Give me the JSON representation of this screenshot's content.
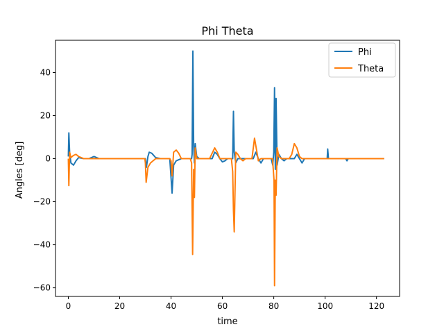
{
  "chart_data": {
    "type": "line",
    "title": "Phi Theta",
    "xlabel": "time",
    "ylabel": "Angles [deg]",
    "xlim": [
      -5,
      129
    ],
    "ylim": [
      -64,
      55
    ],
    "xticks": [
      0,
      20,
      40,
      60,
      80,
      100,
      120
    ],
    "yticks": [
      -60,
      -40,
      -20,
      0,
      20,
      40
    ],
    "grid": false,
    "legend_position": "top-right",
    "series": [
      {
        "name": "Phi",
        "color": "#1f77b4",
        "points": [
          [
            0,
            1
          ],
          [
            0.2,
            12
          ],
          [
            0.5,
            3
          ],
          [
            1,
            -2
          ],
          [
            2,
            -3
          ],
          [
            3,
            -1
          ],
          [
            4,
            0.5
          ],
          [
            6,
            0
          ],
          [
            8,
            0
          ],
          [
            10,
            1
          ],
          [
            12,
            0
          ],
          [
            14,
            0
          ],
          [
            16,
            0
          ],
          [
            18,
            0
          ],
          [
            20,
            0
          ],
          [
            25,
            0
          ],
          [
            30,
            0
          ],
          [
            30.4,
            -4
          ],
          [
            31,
            1
          ],
          [
            31.5,
            3
          ],
          [
            32.5,
            2.5
          ],
          [
            34,
            0.5
          ],
          [
            36,
            0
          ],
          [
            38,
            0
          ],
          [
            39.5,
            0
          ],
          [
            40.4,
            -16
          ],
          [
            41,
            -3
          ],
          [
            42,
            -1
          ],
          [
            43,
            -0.5
          ],
          [
            44,
            0
          ],
          [
            46,
            0
          ],
          [
            48,
            0
          ],
          [
            48.2,
            2
          ],
          [
            48.5,
            50
          ],
          [
            48.8,
            6
          ],
          [
            49.1,
            -2
          ],
          [
            49.4,
            7
          ],
          [
            50,
            1
          ],
          [
            51,
            0
          ],
          [
            52,
            0
          ],
          [
            54,
            0
          ],
          [
            56,
            0
          ],
          [
            57,
            3
          ],
          [
            58,
            2
          ],
          [
            59,
            0
          ],
          [
            60,
            -1.5
          ],
          [
            61,
            -1
          ],
          [
            62,
            0
          ],
          [
            63,
            0
          ],
          [
            64,
            0
          ],
          [
            64.3,
            22
          ],
          [
            64.6,
            3
          ],
          [
            65.2,
            -2
          ],
          [
            66,
            0
          ],
          [
            68,
            0
          ],
          [
            70,
            0
          ],
          [
            72,
            0
          ],
          [
            73,
            3
          ],
          [
            74,
            0
          ],
          [
            75,
            -2
          ],
          [
            76,
            0
          ],
          [
            78,
            0
          ],
          [
            79,
            0
          ],
          [
            79.6,
            -3
          ],
          [
            80,
            3
          ],
          [
            80.3,
            33
          ],
          [
            80.6,
            -5
          ],
          [
            80.9,
            28
          ],
          [
            81.3,
            -3
          ],
          [
            82,
            2
          ],
          [
            83,
            0
          ],
          [
            84,
            -1
          ],
          [
            85,
            0
          ],
          [
            86,
            0
          ],
          [
            88,
            0
          ],
          [
            89,
            2
          ],
          [
            90,
            0
          ],
          [
            91,
            -2
          ],
          [
            92,
            0
          ],
          [
            94,
            0
          ],
          [
            96,
            0
          ],
          [
            98,
            0
          ],
          [
            100,
            0
          ],
          [
            100.8,
            0
          ],
          [
            101,
            4.5
          ],
          [
            101.3,
            0
          ],
          [
            102,
            0
          ],
          [
            105,
            0
          ],
          [
            108,
            0
          ],
          [
            108.5,
            -1
          ],
          [
            109,
            0
          ],
          [
            112,
            0
          ],
          [
            116,
            0
          ],
          [
            120,
            0
          ],
          [
            123,
            0
          ]
        ]
      },
      {
        "name": "Theta",
        "color": "#ff7f0e",
        "points": [
          [
            0,
            0
          ],
          [
            0.2,
            -12.5
          ],
          [
            0.5,
            3
          ],
          [
            1,
            0.5
          ],
          [
            2,
            1.5
          ],
          [
            3,
            2
          ],
          [
            4,
            1
          ],
          [
            6,
            0
          ],
          [
            8,
            0
          ],
          [
            10,
            0
          ],
          [
            12,
            0
          ],
          [
            14,
            0
          ],
          [
            16,
            0
          ],
          [
            18,
            0
          ],
          [
            20,
            0
          ],
          [
            25,
            0
          ],
          [
            29.8,
            0
          ],
          [
            30,
            -2
          ],
          [
            30.3,
            -11
          ],
          [
            31,
            -4
          ],
          [
            32,
            -2
          ],
          [
            33,
            -1
          ],
          [
            34,
            0
          ],
          [
            36,
            0
          ],
          [
            38,
            0
          ],
          [
            39.5,
            0
          ],
          [
            40,
            -1
          ],
          [
            40.4,
            -8
          ],
          [
            41,
            3
          ],
          [
            42,
            4
          ],
          [
            43,
            2.5
          ],
          [
            44,
            0
          ],
          [
            46,
            0
          ],
          [
            47.5,
            0
          ],
          [
            48,
            -2
          ],
          [
            48.4,
            -44.5
          ],
          [
            48.8,
            -5
          ],
          [
            49.1,
            -18
          ],
          [
            49.4,
            5
          ],
          [
            50,
            0
          ],
          [
            51,
            0
          ],
          [
            52,
            0
          ],
          [
            53,
            0
          ],
          [
            55,
            0
          ],
          [
            57,
            5
          ],
          [
            58,
            3
          ],
          [
            59,
            0
          ],
          [
            60,
            0
          ],
          [
            62,
            0
          ],
          [
            63.5,
            0
          ],
          [
            64,
            -6
          ],
          [
            64.3,
            -24
          ],
          [
            64.6,
            -34
          ],
          [
            65.2,
            3
          ],
          [
            66,
            2
          ],
          [
            67,
            0
          ],
          [
            68,
            -1
          ],
          [
            69,
            0
          ],
          [
            70,
            0
          ],
          [
            71.5,
            0
          ],
          [
            72.5,
            9.5
          ],
          [
            73.3,
            4
          ],
          [
            74,
            -1
          ],
          [
            75,
            0
          ],
          [
            76,
            0
          ],
          [
            78,
            0
          ],
          [
            79.5,
            0
          ],
          [
            80.1,
            -10
          ],
          [
            80.3,
            -59
          ],
          [
            80.6,
            -10
          ],
          [
            80.9,
            -17
          ],
          [
            81.3,
            5
          ],
          [
            82,
            1
          ],
          [
            83,
            0
          ],
          [
            84,
            0
          ],
          [
            86,
            0
          ],
          [
            87,
            2
          ],
          [
            88,
            7
          ],
          [
            89,
            5
          ],
          [
            90,
            1
          ],
          [
            91,
            0
          ],
          [
            92,
            0
          ],
          [
            95,
            0
          ],
          [
            100,
            0
          ],
          [
            105,
            0
          ],
          [
            110,
            0
          ],
          [
            115,
            0
          ],
          [
            120,
            0
          ],
          [
            123,
            0
          ]
        ]
      }
    ]
  }
}
